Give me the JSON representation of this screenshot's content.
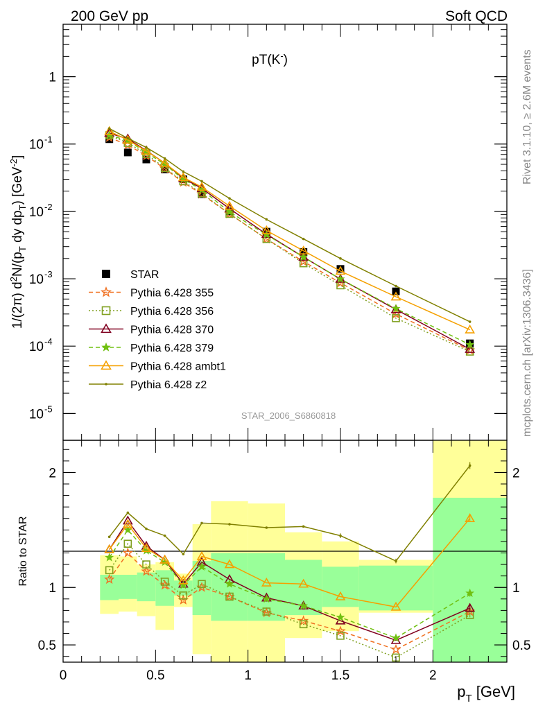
{
  "header": {
    "left": "200 GeV pp",
    "right": "Soft QCD",
    "plot_title": "pT(K",
    "plot_title_sup": "-",
    "plot_title_close": ")",
    "analysis": "STAR_2006_S6860818",
    "side_top": "Rivet 3.1.10, ≥ 2.6M events",
    "side_bottom": "mcplots.cern.ch [arXiv:1306.3436]"
  },
  "colors": {
    "STAR": "#000000",
    "p355": "#f07020",
    "p356": "#80a020",
    "p370": "#800020",
    "p379": "#70c010",
    "ambt1": "#f5a000",
    "z2": "#808000",
    "band_inner": "#99ff99",
    "band_outer": "#ffff99"
  },
  "chart_data": [
    {
      "type": "scatter",
      "name": "main",
      "ylabel": "1/(2π) d²N/(p_T dy dp_T) [GeV⁻²]",
      "ylabel_parts": {
        "a": "1/(2",
        "pi": "π",
        "b": ") d",
        "sup2": "2",
        "c": "N/(p",
        "subT1": "T",
        "d": " dy dp",
        "subT2": "T",
        "e": ") [GeV",
        "sup": "-2",
        "f": "]"
      },
      "xlim": [
        0,
        2.4
      ],
      "ylim": [
        4e-06,
        6
      ],
      "yscale": "log",
      "y_ticks": [
        {
          "v": 1,
          "label": "1"
        },
        {
          "v": 0.1,
          "label": "10",
          "sup": "-1"
        },
        {
          "v": 0.01,
          "label": "10",
          "sup": "-2"
        },
        {
          "v": 0.001,
          "label": "10",
          "sup": "-3"
        },
        {
          "v": 0.0001,
          "label": "10",
          "sup": "-4"
        },
        {
          "v": 1e-05,
          "label": "10",
          "sup": "-5"
        }
      ],
      "legend_position": "bottom-left",
      "series": [
        {
          "key": "STAR",
          "name": "STAR",
          "marker": "square",
          "x": [
            0.25,
            0.35,
            0.45,
            0.55,
            0.65,
            0.75,
            0.9,
            1.1,
            1.3,
            1.5,
            1.8,
            2.2
          ],
          "y": [
            0.118,
            0.075,
            0.059,
            0.042,
            0.03,
            0.018,
            0.01,
            0.005,
            0.0025,
            0.0014,
            0.00065,
            0.00011
          ]
        },
        {
          "key": "p355",
          "name": "Pythia 6.428 355",
          "marker": "star",
          "dash": "6,4",
          "x": [
            0.25,
            0.35,
            0.45,
            0.55,
            0.65,
            0.75,
            0.9,
            1.1,
            1.3,
            1.5,
            1.8,
            2.2
          ],
          "y": [
            0.125,
            0.097,
            0.067,
            0.043,
            0.027,
            0.018,
            0.0092,
            0.0039,
            0.0018,
            0.00087,
            0.0003,
            8.7e-05
          ]
        },
        {
          "key": "p356",
          "name": "Pythia 6.428 356",
          "marker": "opensquare",
          "dash": "2,3",
          "x": [
            0.25,
            0.35,
            0.45,
            0.55,
            0.65,
            0.75,
            0.9,
            1.1,
            1.3,
            1.5,
            1.8,
            2.2
          ],
          "y": [
            0.135,
            0.104,
            0.071,
            0.044,
            0.028,
            0.0185,
            0.0092,
            0.0039,
            0.0017,
            0.0008,
            0.00026,
            8.3e-05
          ]
        },
        {
          "key": "p370",
          "name": "Pythia 6.428 370",
          "marker": "opentriangle",
          "dash": "",
          "x": [
            0.25,
            0.35,
            0.45,
            0.55,
            0.65,
            0.75,
            0.9,
            1.1,
            1.3,
            1.5,
            1.8,
            2.2
          ],
          "y": [
            0.145,
            0.12,
            0.08,
            0.052,
            0.031,
            0.022,
            0.011,
            0.0046,
            0.0021,
            0.00099,
            0.00035,
            9e-05
          ]
        },
        {
          "key": "p379",
          "name": "Pythia 6.428 379",
          "marker": "smallstar",
          "dash": "6,4",
          "x": [
            0.25,
            0.35,
            0.45,
            0.55,
            0.65,
            0.75,
            0.9,
            1.1,
            1.3,
            1.5,
            1.8,
            2.2
          ],
          "y": [
            0.135,
            0.113,
            0.075,
            0.05,
            0.03,
            0.021,
            0.0098,
            0.0045,
            0.0021,
            0.00099,
            0.00036,
            0.000105
          ]
        },
        {
          "key": "ambt1",
          "name": "Pythia 6.428 ambt1",
          "marker": "opentriangle",
          "dash": "",
          "x": [
            0.25,
            0.35,
            0.45,
            0.55,
            0.65,
            0.75,
            0.9,
            1.1,
            1.3,
            1.5,
            1.8,
            2.2
          ],
          "y": [
            0.155,
            0.115,
            0.079,
            0.052,
            0.032,
            0.023,
            0.012,
            0.0052,
            0.0026,
            0.0013,
            0.00054,
            0.000175
          ]
        },
        {
          "key": "z2",
          "name": "Pythia 6.428 z2",
          "marker": "dot",
          "dash": "",
          "x": [
            0.25,
            0.35,
            0.45,
            0.55,
            0.65,
            0.75,
            0.9,
            1.1,
            1.3,
            1.5,
            1.8,
            2.2
          ],
          "y": [
            0.17,
            0.122,
            0.089,
            0.061,
            0.039,
            0.028,
            0.0156,
            0.0076,
            0.0039,
            0.002,
            0.00078,
            0.00023
          ]
        }
      ]
    },
    {
      "type": "line",
      "name": "ratio",
      "ylabel": "Ratio to STAR",
      "xlabel_main": "p",
      "xlabel_sub": "T",
      "xlabel_unit": " [GeV]",
      "xlim": [
        0,
        2.4
      ],
      "ylim": [
        0.35,
        2.28
      ],
      "x_ticks": [
        {
          "v": 0,
          "label": "0"
        },
        {
          "v": 0.5,
          "label": "0.5"
        },
        {
          "v": 1,
          "label": "1"
        },
        {
          "v": 1.5,
          "label": "1.5"
        },
        {
          "v": 2,
          "label": "2"
        }
      ],
      "y_ticks": [
        {
          "v": 0.5,
          "label": "0.5"
        },
        {
          "v": 1,
          "label": "1"
        },
        {
          "v": 2,
          "label": "2"
        }
      ],
      "bands": [
        {
          "x0": 0.2,
          "x1": 0.3,
          "inner": [
            0.89,
            1.11
          ],
          "outer": [
            0.77,
            1.28
          ]
        },
        {
          "x0": 0.3,
          "x1": 0.4,
          "inner": [
            0.9,
            1.11
          ],
          "outer": [
            0.79,
            1.27
          ]
        },
        {
          "x0": 0.4,
          "x1": 0.5,
          "inner": [
            0.88,
            1.13
          ],
          "outer": [
            0.75,
            1.2
          ]
        },
        {
          "x0": 0.5,
          "x1": 0.6,
          "inner": [
            0.84,
            1.15
          ],
          "outer": [
            0.63,
            1.22
          ]
        },
        {
          "x0": 0.6,
          "x1": 0.7,
          "inner": [
            0.93,
            1.06
          ],
          "outer": [
            0.83,
            1.12
          ]
        },
        {
          "x0": 0.7,
          "x1": 0.8,
          "inner": [
            0.76,
            1.23
          ],
          "outer": [
            0.42,
            1.55
          ]
        },
        {
          "x0": 0.8,
          "x1": 1.0,
          "inner": [
            0.71,
            1.3
          ],
          "outer": [
            0.35,
            1.75
          ]
        },
        {
          "x0": 1.0,
          "x1": 1.2,
          "inner": [
            0.71,
            1.3
          ],
          "outer": [
            0.35,
            1.73
          ]
        },
        {
          "x0": 1.2,
          "x1": 1.4,
          "inner": [
            0.76,
            1.24
          ],
          "outer": [
            0.56,
            1.48
          ]
        },
        {
          "x0": 1.4,
          "x1": 1.6,
          "inner": [
            0.83,
            1.18
          ],
          "outer": [
            0.62,
            1.4
          ]
        },
        {
          "x0": 1.6,
          "x1": 2.0,
          "inner": [
            0.8,
            1.19
          ],
          "outer": [
            0.78,
            1.24
          ]
        },
        {
          "x0": 2.0,
          "x1": 2.4,
          "inner": [
            0.35,
            1.78
          ],
          "outer": [
            0.35,
            2.28
          ]
        }
      ],
      "series": [
        {
          "key": "p355",
          "y": [
            1.07,
            1.3,
            1.14,
            1.02,
            0.89,
            1.0,
            0.92,
            0.78,
            0.71,
            0.62,
            0.46,
            0.79
          ],
          "err": [
            0,
            0,
            0,
            0,
            0,
            0,
            0,
            0,
            0,
            0,
            0,
            0.02
          ]
        },
        {
          "key": "p356",
          "y": [
            1.15,
            1.38,
            1.2,
            1.05,
            0.93,
            1.03,
            0.92,
            0.79,
            0.68,
            0.58,
            0.39,
            0.76
          ],
          "err": [
            0,
            0,
            0,
            0,
            0,
            0,
            0,
            0,
            0,
            0,
            0,
            0.02
          ]
        },
        {
          "key": "p370",
          "y": [
            1.33,
            1.58,
            1.36,
            1.24,
            1.03,
            1.22,
            1.07,
            0.91,
            0.84,
            0.71,
            0.54,
            0.82
          ],
          "err": [
            0,
            0,
            0,
            0,
            0,
            0,
            0,
            0,
            0,
            0,
            0,
            0.03
          ]
        },
        {
          "key": "p379",
          "y": [
            1.26,
            1.5,
            1.32,
            1.22,
            1.02,
            1.18,
            1.03,
            0.9,
            0.84,
            0.74,
            0.56,
            0.95
          ],
          "err": [
            0,
            0,
            0,
            0,
            0,
            0,
            0,
            0,
            0,
            0,
            0,
            0.03
          ]
        },
        {
          "key": "ambt1",
          "y": [
            1.33,
            1.55,
            1.34,
            1.24,
            1.06,
            1.27,
            1.2,
            1.04,
            1.03,
            0.92,
            0.83,
            1.6
          ],
          "err": [
            0,
            0,
            0,
            0,
            0,
            0,
            0,
            0,
            0,
            0,
            0,
            0.03
          ]
        },
        {
          "key": "z2",
          "y": [
            1.44,
            1.65,
            1.51,
            1.45,
            1.29,
            1.56,
            1.55,
            1.52,
            1.53,
            1.45,
            1.23,
            2.06
          ],
          "err": [
            0,
            0,
            0,
            0,
            0,
            0,
            0,
            0,
            0,
            0.02,
            0.02,
            0.03
          ]
        }
      ],
      "x": [
        0.25,
        0.35,
        0.45,
        0.55,
        0.65,
        0.75,
        0.9,
        1.1,
        1.3,
        1.5,
        1.8,
        2.2
      ]
    }
  ]
}
